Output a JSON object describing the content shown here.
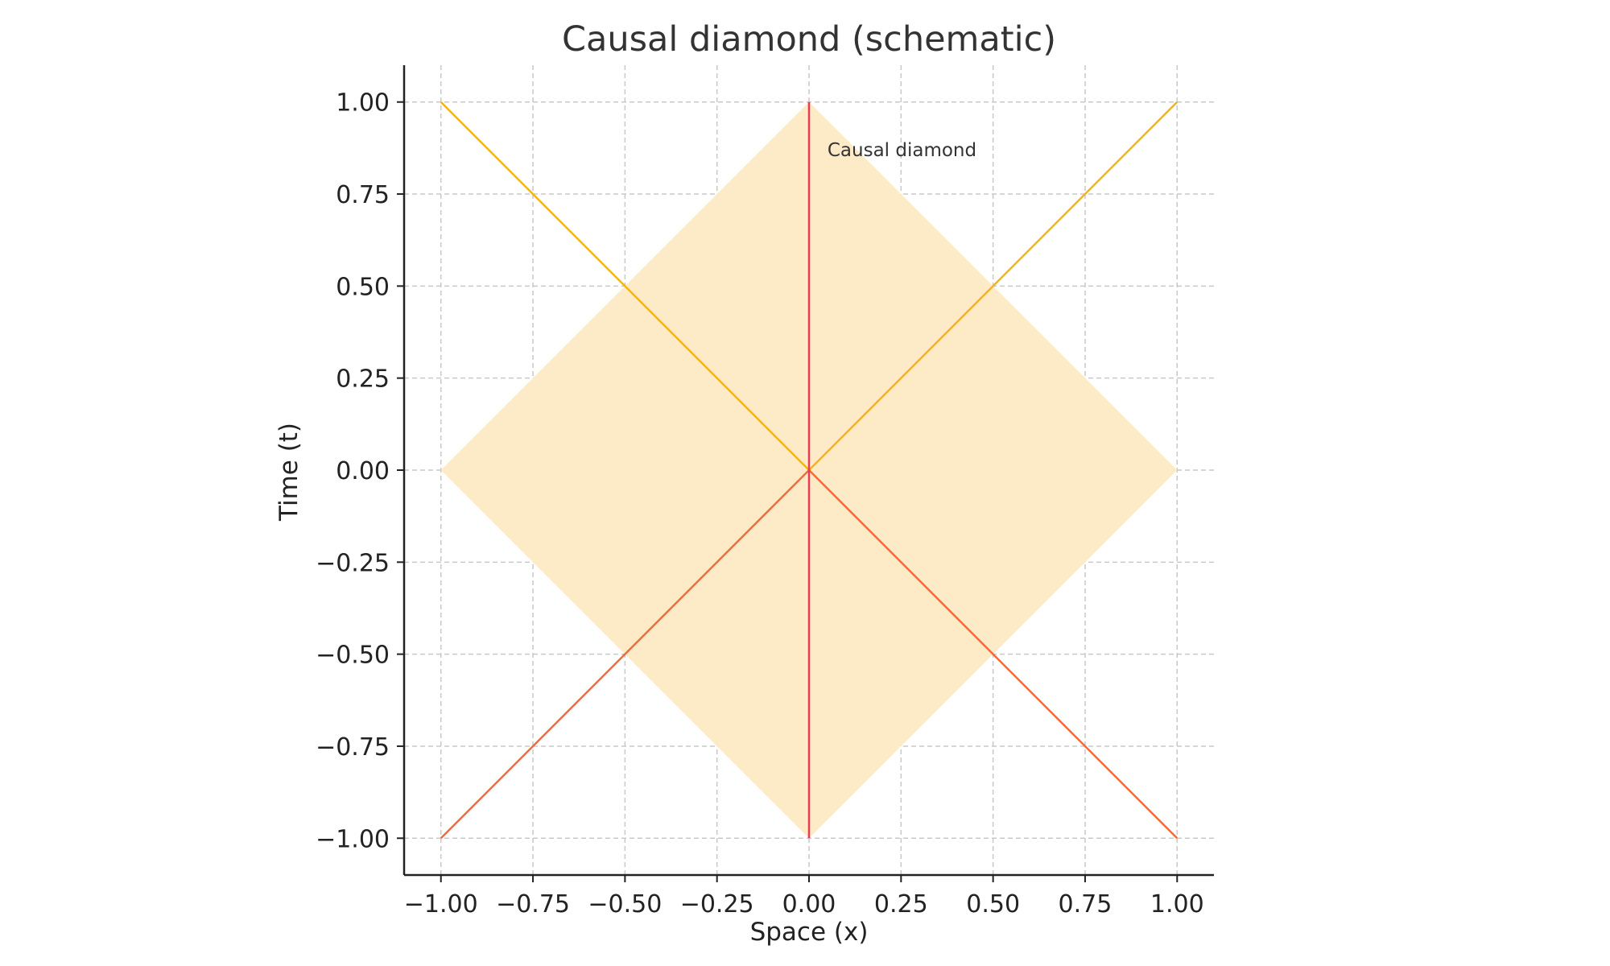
{
  "chart_data": {
    "type": "line",
    "title": "Causal diamond (schematic)",
    "xlabel": "Space (x)",
    "ylabel": "Time (t)",
    "xlim": [
      -1.1,
      1.1
    ],
    "ylim": [
      -1.1,
      1.1
    ],
    "xticks": [
      -1.0,
      -0.75,
      -0.5,
      -0.25,
      0.0,
      0.25,
      0.5,
      0.75,
      1.0
    ],
    "yticks": [
      -1.0,
      -0.75,
      -0.5,
      -0.25,
      0.0,
      0.25,
      0.5,
      0.75,
      1.0
    ],
    "xtick_labels": [
      "−1.00",
      "−0.75",
      "−0.50",
      "−0.25",
      "0.00",
      "0.25",
      "0.50",
      "0.75",
      "1.00"
    ],
    "ytick_labels": [
      "−1.00",
      "−0.75",
      "−0.50",
      "−0.25",
      "0.00",
      "0.25",
      "0.50",
      "0.75",
      "1.00"
    ],
    "grid": true,
    "grid_style": "dashed",
    "region": {
      "x": [
        0,
        1,
        0,
        -1
      ],
      "y": [
        1,
        0,
        -1,
        0
      ],
      "color": "#FDEBC8"
    },
    "series": [
      {
        "x": [
          0,
          1
        ],
        "y": [
          0,
          1
        ],
        "color": "#F5B316"
      },
      {
        "x": [
          0,
          -1
        ],
        "y": [
          0,
          1
        ],
        "color": "#F5B316"
      },
      {
        "x": [
          0,
          -1
        ],
        "y": [
          0,
          -1
        ],
        "color": "#F26B38"
      },
      {
        "x": [
          0,
          1
        ],
        "y": [
          0,
          -1
        ],
        "color": "#F26B38"
      },
      {
        "x": [
          0,
          0
        ],
        "y": [
          -1,
          1
        ],
        "color": "#E63D55"
      }
    ],
    "annotations": [
      {
        "text": "Causal diamond",
        "x": 0.05,
        "y": 0.87
      }
    ]
  }
}
